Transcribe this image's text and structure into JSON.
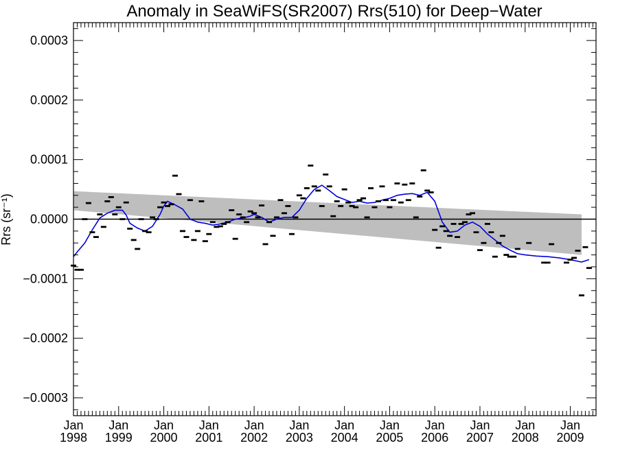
{
  "chart_data": {
    "type": "scatter",
    "title": "Anomaly in SeaWiFS(SR2007) Rrs(510) for Deep−Water",
    "ylabel": "Rrs (sr⁻¹)",
    "xlabel": "",
    "ylim": [
      -0.00033,
      0.00033
    ],
    "xlim": [
      "1998-01",
      "2009-04"
    ],
    "grid": false,
    "colors": {
      "running_mean": "#0000dd",
      "confidence_band": "#bebebe",
      "points": "#000000",
      "zero_line": "#000000"
    },
    "yticks": [
      {
        "value": 0.0003,
        "label": "0.0003"
      },
      {
        "value": 0.0002,
        "label": "0.0002"
      },
      {
        "value": 0.0001,
        "label": "0.0001"
      },
      {
        "value": 0.0,
        "label": "0.0000"
      },
      {
        "value": -0.0001,
        "label": "−0.0001"
      },
      {
        "value": -0.0002,
        "label": "−0.0002"
      },
      {
        "value": -0.0003,
        "label": "−0.0003"
      }
    ],
    "xticks": [
      {
        "date": "1998-01",
        "month": "Jan",
        "year": "1998"
      },
      {
        "date": "1999-01",
        "month": "Jan",
        "year": "1999"
      },
      {
        "date": "2000-01",
        "month": "Jan",
        "year": "2000"
      },
      {
        "date": "2001-01",
        "month": "Jan",
        "year": "2001"
      },
      {
        "date": "2002-01",
        "month": "Jan",
        "year": "2002"
      },
      {
        "date": "2003-01",
        "month": "Jan",
        "year": "2003"
      },
      {
        "date": "2004-01",
        "month": "Jan",
        "year": "2004"
      },
      {
        "date": "2005-01",
        "month": "Jan",
        "year": "2005"
      },
      {
        "date": "2006-01",
        "month": "Jan",
        "year": "2006"
      },
      {
        "date": "2007-01",
        "month": "Jan",
        "year": "2007"
      },
      {
        "date": "2008-01",
        "month": "Jan",
        "year": "2008"
      },
      {
        "date": "2009-01",
        "month": "Jan",
        "year": "2009"
      }
    ],
    "band": {
      "upper": [
        [
          "1998-01",
          4.7e-05
        ],
        [
          "2009-04",
          8e-06
        ]
      ],
      "lower": [
        [
          "1998-01",
          1.5e-05
        ],
        [
          "2009-04",
          -6e-05
        ]
      ]
    },
    "series": [
      {
        "type": "scatter",
        "points": [
          [
            "1998-01",
            -7.8e-05
          ],
          [
            "1998-02",
            -8.5e-05
          ],
          [
            "1998-03",
            -8.5e-05
          ],
          [
            "1998-04",
            0.0
          ],
          [
            "1998-05",
            2.7e-05
          ],
          [
            "1998-06",
            -2.2e-05
          ],
          [
            "1998-07",
            -3e-05
          ],
          [
            "1998-08",
            8e-06
          ],
          [
            "1998-09",
            -1.3e-05
          ],
          [
            "1998-10",
            3e-05
          ],
          [
            "1998-11",
            3.7e-05
          ],
          [
            "1998-12",
            8e-06
          ],
          [
            "1999-01",
            2e-05
          ],
          [
            "1999-02",
            0.0
          ],
          [
            "1999-03",
            2.8e-05
          ],
          [
            "1999-04",
            -1.6e-05
          ],
          [
            "1999-05",
            -3.5e-05
          ],
          [
            "1999-06",
            -5e-05
          ],
          [
            "1999-07",
            0.0
          ],
          [
            "1999-08",
            -2e-05
          ],
          [
            "1999-09",
            -2.2e-05
          ],
          [
            "1999-10",
            3e-06
          ],
          [
            "1999-11",
            0.0
          ],
          [
            "1999-12",
            2e-05
          ],
          [
            "2000-01",
            2.8e-05
          ],
          [
            "2000-02",
            2.2e-05
          ],
          [
            "2000-03",
            2.5e-05
          ],
          [
            "2000-04",
            7.3e-05
          ],
          [
            "2000-05",
            4.2e-05
          ],
          [
            "2000-06",
            -2e-05
          ],
          [
            "2000-07",
            -3e-05
          ],
          [
            "2000-08",
            3.2e-05
          ],
          [
            "2000-09",
            -3.5e-05
          ],
          [
            "2000-10",
            -2e-05
          ],
          [
            "2000-11",
            3e-05
          ],
          [
            "2000-12",
            -3.7e-05
          ],
          [
            "2001-01",
            -2.5e-05
          ],
          [
            "2001-02",
            -5e-06
          ],
          [
            "2001-03",
            -1.3e-05
          ],
          [
            "2001-04",
            -1.2e-05
          ],
          [
            "2001-05",
            -8e-06
          ],
          [
            "2001-06",
            -5e-06
          ],
          [
            "2001-07",
            1.5e-05
          ],
          [
            "2001-08",
            -3.3e-05
          ],
          [
            "2001-09",
            8e-06
          ],
          [
            "2001-10",
            3e-06
          ],
          [
            "2001-11",
            -5e-06
          ],
          [
            "2001-12",
            1.3e-05
          ],
          [
            "2002-01",
            1e-05
          ],
          [
            "2002-02",
            3e-06
          ],
          [
            "2002-03",
            2.3e-05
          ],
          [
            "2002-04",
            -4.2e-05
          ],
          [
            "2002-05",
            -5e-06
          ],
          [
            "2002-06",
            -2.8e-05
          ],
          [
            "2002-07",
            3e-06
          ],
          [
            "2002-08",
            3.2e-05
          ],
          [
            "2002-09",
            1e-05
          ],
          [
            "2002-10",
            2.2e-05
          ],
          [
            "2002-11",
            -2.5e-05
          ],
          [
            "2002-12",
            3e-06
          ],
          [
            "2003-01",
            4e-05
          ],
          [
            "2003-02",
            3.5e-05
          ],
          [
            "2003-03",
            5.2e-05
          ],
          [
            "2003-04",
            9e-05
          ],
          [
            "2003-05",
            5.5e-05
          ],
          [
            "2003-06",
            4.8e-05
          ],
          [
            "2003-07",
            2.2e-05
          ],
          [
            "2003-08",
            7.5e-05
          ],
          [
            "2003-09",
            5.5e-05
          ],
          [
            "2003-10",
            5e-06
          ],
          [
            "2003-11",
            3e-05
          ],
          [
            "2003-12",
            2.2e-05
          ],
          [
            "2004-01",
            5e-05
          ],
          [
            "2004-02",
            2.8e-05
          ],
          [
            "2004-03",
            2.2e-05
          ],
          [
            "2004-04",
            2e-05
          ],
          [
            "2004-05",
            3.2e-05
          ],
          [
            "2004-06",
            3.5e-05
          ],
          [
            "2004-07",
            3e-06
          ],
          [
            "2004-08",
            5.2e-05
          ],
          [
            "2004-09",
            2e-05
          ],
          [
            "2004-10",
            3e-05
          ],
          [
            "2004-11",
            5.5e-05
          ],
          [
            "2004-12",
            3.2e-05
          ],
          [
            "2005-01",
            2e-05
          ],
          [
            "2005-02",
            3.2e-05
          ],
          [
            "2005-03",
            6e-05
          ],
          [
            "2005-04",
            2.8e-05
          ],
          [
            "2005-05",
            5.8e-05
          ],
          [
            "2005-06",
            3.2e-05
          ],
          [
            "2005-07",
            6e-05
          ],
          [
            "2005-08",
            3e-06
          ],
          [
            "2005-09",
            3.8e-05
          ],
          [
            "2005-10",
            8.2e-05
          ],
          [
            "2005-11",
            4.8e-05
          ],
          [
            "2005-12",
            4.5e-05
          ],
          [
            "2006-01",
            -1.8e-05
          ],
          [
            "2006-02",
            -4.8e-05
          ],
          [
            "2006-03",
            -1.2e-05
          ],
          [
            "2006-04",
            -2e-05
          ],
          [
            "2006-05",
            -2.8e-05
          ],
          [
            "2006-06",
            -8e-06
          ],
          [
            "2006-07",
            -3e-05
          ],
          [
            "2006-08",
            -8e-06
          ],
          [
            "2006-09",
            -5e-06
          ],
          [
            "2006-10",
            8e-06
          ],
          [
            "2006-11",
            1e-05
          ],
          [
            "2006-12",
            -2.2e-05
          ],
          [
            "2007-01",
            -5.2e-05
          ],
          [
            "2007-02",
            -4e-05
          ],
          [
            "2007-03",
            -8e-06
          ],
          [
            "2007-04",
            -2.2e-05
          ],
          [
            "2007-05",
            -6.3e-05
          ],
          [
            "2007-06",
            -4e-05
          ],
          [
            "2007-07",
            -2.8e-05
          ],
          [
            "2007-08",
            -6e-05
          ],
          [
            "2007-09",
            -6.3e-05
          ],
          [
            "2007-10",
            -6.3e-05
          ],
          [
            "2007-11",
            -5e-05
          ],
          [
            "2008-02",
            -4e-05
          ],
          [
            "2008-06",
            -7.3e-05
          ],
          [
            "2008-07",
            -7.3e-05
          ],
          [
            "2008-08",
            -4.2e-05
          ],
          [
            "2008-12",
            -7.3e-05
          ],
          [
            "2009-01",
            -6.8e-05
          ],
          [
            "2009-02",
            -6.5e-05
          ],
          [
            "2009-03",
            -5.3e-05
          ],
          [
            "2009-04",
            -0.000128
          ],
          [
            "2009-05",
            -4.7e-05
          ],
          [
            "2009-06",
            -8.2e-05
          ]
        ]
      },
      {
        "type": "line",
        "points": [
          [
            "1998-01",
            -6.3e-05
          ],
          [
            "1998-02",
            -5.5e-05
          ],
          [
            "1998-04",
            -4e-05
          ],
          [
            "1998-06",
            -1.8e-05
          ],
          [
            "1998-08",
            2e-06
          ],
          [
            "1998-10",
            1e-05
          ],
          [
            "1998-12",
            1.5e-05
          ],
          [
            "1999-02",
            1.5e-05
          ],
          [
            "1999-03",
            7e-06
          ],
          [
            "1999-04",
            -7e-06
          ],
          [
            "1999-06",
            -1.5e-05
          ],
          [
            "1999-08",
            -2e-05
          ],
          [
            "1999-10",
            -1.2e-05
          ],
          [
            "1999-12",
            8e-06
          ],
          [
            "2000-01",
            2.2e-05
          ],
          [
            "2000-02",
            3e-05
          ],
          [
            "2000-04",
            2.4e-05
          ],
          [
            "2000-06",
            1.7e-05
          ],
          [
            "2000-08",
            0.0
          ],
          [
            "2000-10",
            -5e-06
          ],
          [
            "2000-12",
            -7e-06
          ],
          [
            "2001-02",
            -1e-05
          ],
          [
            "2001-04",
            -8e-06
          ],
          [
            "2001-06",
            -5e-06
          ],
          [
            "2001-08",
            0.0
          ],
          [
            "2001-10",
            2e-06
          ],
          [
            "2001-12",
            5e-06
          ],
          [
            "2002-01",
            8e-06
          ],
          [
            "2002-03",
            3e-06
          ],
          [
            "2002-05",
            -5e-06
          ],
          [
            "2002-07",
            0.0
          ],
          [
            "2002-09",
            3e-06
          ],
          [
            "2002-11",
            3e-06
          ],
          [
            "2003-01",
            1.5e-05
          ],
          [
            "2003-03",
            3.5e-05
          ],
          [
            "2003-05",
            5e-05
          ],
          [
            "2003-07",
            5.7e-05
          ],
          [
            "2003-09",
            4.8e-05
          ],
          [
            "2003-11",
            3.8e-05
          ],
          [
            "2004-01",
            3.3e-05
          ],
          [
            "2004-03",
            2.8e-05
          ],
          [
            "2004-05",
            3e-05
          ],
          [
            "2004-07",
            2.7e-05
          ],
          [
            "2004-09",
            2.8e-05
          ],
          [
            "2004-11",
            3.2e-05
          ],
          [
            "2005-01",
            3.5e-05
          ],
          [
            "2005-03",
            4e-05
          ],
          [
            "2005-05",
            4.2e-05
          ],
          [
            "2005-07",
            4.3e-05
          ],
          [
            "2005-09",
            4e-05
          ],
          [
            "2005-11",
            4.5e-05
          ],
          [
            "2006-01",
            3e-05
          ],
          [
            "2006-03",
            -5e-06
          ],
          [
            "2006-05",
            -2.2e-05
          ],
          [
            "2006-07",
            -2e-05
          ],
          [
            "2006-09",
            -1e-05
          ],
          [
            "2006-11",
            -5e-06
          ],
          [
            "2007-01",
            -1.2e-05
          ],
          [
            "2007-03",
            -2.5e-05
          ],
          [
            "2007-05",
            -3.5e-05
          ],
          [
            "2007-07",
            -4.5e-05
          ],
          [
            "2007-09",
            -5.2e-05
          ],
          [
            "2007-11",
            -5.8e-05
          ],
          [
            "2008-01",
            -6e-05
          ],
          [
            "2008-04",
            -6.2e-05
          ],
          [
            "2008-07",
            -6.3e-05
          ],
          [
            "2008-10",
            -6.5e-05
          ],
          [
            "2009-01",
            -6.8e-05
          ],
          [
            "2009-04",
            -7.2e-05
          ],
          [
            "2009-06",
            -6.8e-05
          ]
        ]
      }
    ]
  }
}
